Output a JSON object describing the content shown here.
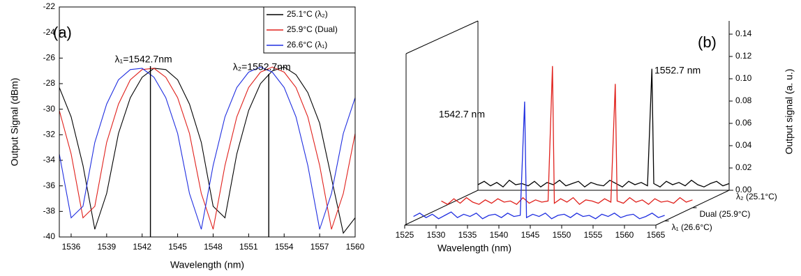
{
  "chart_data": [
    {
      "type": "line",
      "label": "(a)",
      "xlabel": "Wavelength (nm)",
      "ylabel": "Output Signal (dBm)",
      "x": [
        1535,
        1536,
        1537,
        1538,
        1539,
        1540,
        1541,
        1542,
        1543,
        1544,
        1545,
        1546,
        1547,
        1548,
        1549,
        1550,
        1551,
        1552,
        1553,
        1554,
        1555,
        1556,
        1557,
        1558,
        1559,
        1560
      ],
      "xlim": [
        1535,
        1560
      ],
      "xticks": [
        1536,
        1539,
        1542,
        1545,
        1548,
        1551,
        1554,
        1557,
        1560
      ],
      "ylim": [
        -40,
        -22
      ],
      "yticks": [
        -40,
        -38,
        -36,
        -34,
        -32,
        -30,
        -28,
        -26,
        -24,
        -22
      ],
      "legend": "upper right",
      "series": [
        {
          "name": "25.1°C (λ₂)",
          "color": "#000000",
          "values": [
            -28.3,
            -30.6,
            -34.4,
            -39.4,
            -36.6,
            -31.9,
            -29.1,
            -27.5,
            -26.8,
            -26.9,
            -27.7,
            -29.6,
            -32.6,
            -37.6,
            -38.5,
            -33.5,
            -30.1,
            -28.0,
            -27.0,
            -26.7,
            -27.3,
            -28.7,
            -31.1,
            -35.4,
            -39.7,
            -38.5
          ]
        },
        {
          "name": "25.9°C (Dual)",
          "color": "#e0201b",
          "values": [
            -30.1,
            -33.5,
            -38.5,
            -37.6,
            -32.6,
            -29.6,
            -27.7,
            -26.9,
            -26.8,
            -27.5,
            -29.1,
            -31.9,
            -36.6,
            -39.4,
            -34.4,
            -30.6,
            -28.3,
            -27.1,
            -26.7,
            -27.1,
            -28.3,
            -30.6,
            -34.4,
            -39.4,
            -36.6,
            -31.9
          ]
        },
        {
          "name": "26.6°C (λ₁)",
          "color": "#1f2ee0",
          "values": [
            -33.5,
            -38.5,
            -37.6,
            -32.6,
            -29.6,
            -27.7,
            -26.9,
            -26.8,
            -27.5,
            -29.1,
            -31.9,
            -36.6,
            -39.4,
            -34.4,
            -30.6,
            -28.3,
            -27.1,
            -26.7,
            -27.1,
            -28.3,
            -30.6,
            -34.4,
            -39.4,
            -36.6,
            -31.9,
            -29.1
          ]
        }
      ],
      "annotations": [
        {
          "x": 1542.7,
          "text": "λ₁=1542.7nm"
        },
        {
          "x": 1552.7,
          "text": "λ₂=1552.7nm"
        }
      ]
    },
    {
      "type": "waterfall",
      "label": "(b)",
      "xlabel": "Wavelength (nm)",
      "ylabel": "Output signal (a. u.)",
      "xlim": [
        1525,
        1565
      ],
      "xticks": [
        1525,
        1530,
        1535,
        1540,
        1545,
        1550,
        1555,
        1560,
        1565
      ],
      "ylim": [
        0,
        0.14
      ],
      "yticks": [
        {
          "value": 0,
          "label": "0.00"
        },
        {
          "value": 0.02,
          "label": "0.02"
        },
        {
          "value": 0.04,
          "label": "0.04"
        },
        {
          "value": 0.06,
          "label": "0.06"
        },
        {
          "value": 0.08,
          "label": "0.08"
        },
        {
          "value": 0.1,
          "label": "0.10"
        },
        {
          "value": 0.12,
          "label": "0.12"
        },
        {
          "value": 0.14,
          "label": "0.14"
        }
      ],
      "series": [
        {
          "name": "λ₁ (26.6°C)",
          "color": "#1f2ee0",
          "x": [
            1525,
            1526,
            1527,
            1528,
            1529,
            1530,
            1531,
            1532,
            1533,
            1534,
            1535,
            1536,
            1537,
            1538,
            1539,
            1540,
            1541,
            1542,
            1542.7,
            1543,
            1544,
            1545,
            1546,
            1547,
            1548,
            1549,
            1550,
            1551,
            1552,
            1553,
            1554,
            1555,
            1556,
            1557,
            1558,
            1559,
            1560,
            1561,
            1562,
            1563,
            1564,
            1565
          ],
          "values": [
            0.004,
            0.007,
            0.003,
            0.006,
            0.002,
            0.005,
            0.008,
            0.003,
            0.006,
            0.004,
            0.007,
            0.002,
            0.005,
            0.006,
            0.003,
            0.007,
            0.004,
            0.005,
            0.107,
            0.003,
            0.006,
            0.004,
            0.007,
            0.002,
            0.005,
            0.006,
            0.003,
            0.007,
            0.004,
            0.005,
            0.002,
            0.006,
            0.004,
            0.007,
            0.003,
            0.005,
            0.006,
            0.002,
            0.004,
            0.007,
            0.003,
            0.005
          ]
        },
        {
          "name": "Dual (25.9°C)",
          "color": "#e0201b",
          "x": [
            1525,
            1526,
            1527,
            1528,
            1529,
            1530,
            1531,
            1532,
            1533,
            1534,
            1535,
            1536,
            1537,
            1538,
            1539,
            1540,
            1541,
            1542,
            1542.7,
            1543,
            1544,
            1545,
            1546,
            1547,
            1548,
            1549,
            1550,
            1551,
            1552,
            1552.7,
            1553,
            1554,
            1555,
            1556,
            1557,
            1558,
            1559,
            1560,
            1561,
            1562,
            1563,
            1564,
            1565
          ],
          "values": [
            0.006,
            0.003,
            0.008,
            0.004,
            0.009,
            0.005,
            0.003,
            0.007,
            0.004,
            0.008,
            0.005,
            0.006,
            0.003,
            0.009,
            0.004,
            0.007,
            0.005,
            0.006,
            0.127,
            0.004,
            0.008,
            0.005,
            0.009,
            0.003,
            0.007,
            0.006,
            0.004,
            0.008,
            0.005,
            0.111,
            0.006,
            0.004,
            0.009,
            0.005,
            0.007,
            0.003,
            0.008,
            0.005,
            0.006,
            0.004,
            0.009,
            0.005,
            0.007
          ]
        },
        {
          "name": "λ₂ (25.1°C)",
          "color": "#000000",
          "x": [
            1525,
            1526,
            1527,
            1528,
            1529,
            1530,
            1531,
            1532,
            1533,
            1534,
            1535,
            1536,
            1537,
            1538,
            1539,
            1540,
            1541,
            1542,
            1543,
            1544,
            1545,
            1546,
            1547,
            1548,
            1549,
            1550,
            1551,
            1552,
            1552.7,
            1553,
            1554,
            1555,
            1556,
            1557,
            1558,
            1559,
            1560,
            1561,
            1562,
            1563,
            1564,
            1565
          ],
          "values": [
            0.005,
            0.008,
            0.004,
            0.007,
            0.003,
            0.009,
            0.005,
            0.006,
            0.004,
            0.008,
            0.003,
            0.007,
            0.005,
            0.009,
            0.004,
            0.006,
            0.008,
            0.003,
            0.007,
            0.005,
            0.004,
            0.009,
            0.006,
            0.003,
            0.008,
            0.005,
            0.007,
            0.004,
            0.109,
            0.006,
            0.003,
            0.008,
            0.005,
            0.007,
            0.004,
            0.009,
            0.005,
            0.003,
            0.006,
            0.008,
            0.004,
            0.006
          ]
        }
      ],
      "annotations": [
        {
          "text": "1542.7 nm"
        },
        {
          "text": "1552.7 nm"
        }
      ]
    }
  ]
}
